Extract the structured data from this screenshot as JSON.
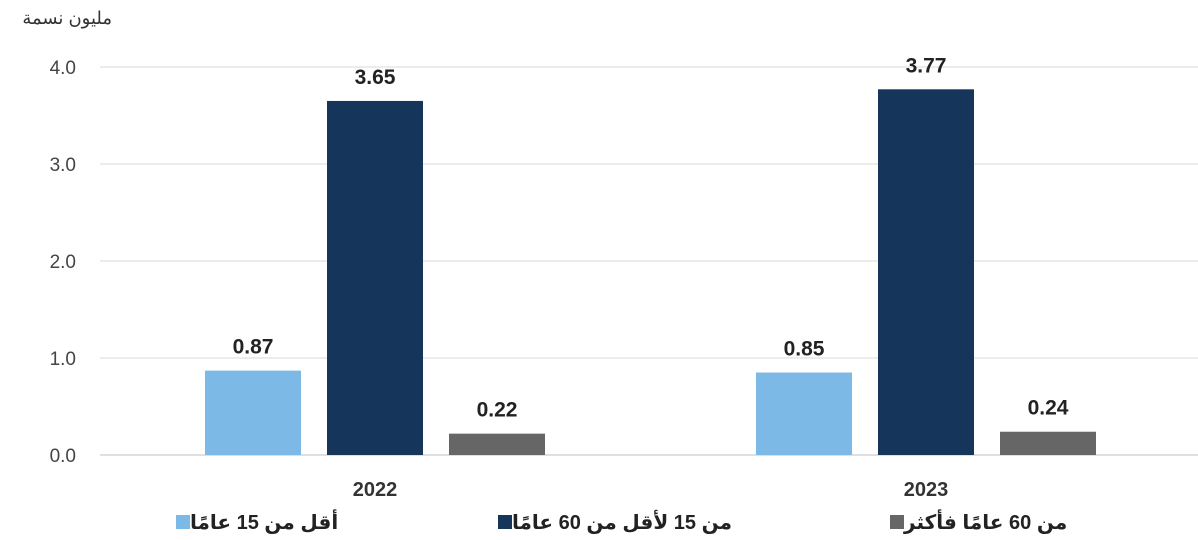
{
  "chart_data": {
    "type": "bar",
    "ylabel": "مليون نسمة",
    "ylim": [
      0,
      4
    ],
    "yticks": [
      "0.0",
      "1.0",
      "2.0",
      "3.0",
      "4.0"
    ],
    "categories": [
      "2022",
      "2023"
    ],
    "series": [
      {
        "name": "أقل من 15 عامًا",
        "color": "#7db9e6",
        "values": [
          0.87,
          0.85
        ],
        "labels": [
          "0.87",
          "0.85"
        ]
      },
      {
        "name": "من 15 لأقل من 60 عامًا",
        "color": "#15365a",
        "values": [
          3.65,
          3.77
        ],
        "labels": [
          "3.65",
          "3.77"
        ]
      },
      {
        "name": "من 60 عامًا فأكثر",
        "color": "#666666",
        "values": [
          0.22,
          0.24
        ],
        "labels": [
          "0.22",
          "0.24"
        ]
      }
    ],
    "grid": true,
    "legend_position": "bottom"
  }
}
